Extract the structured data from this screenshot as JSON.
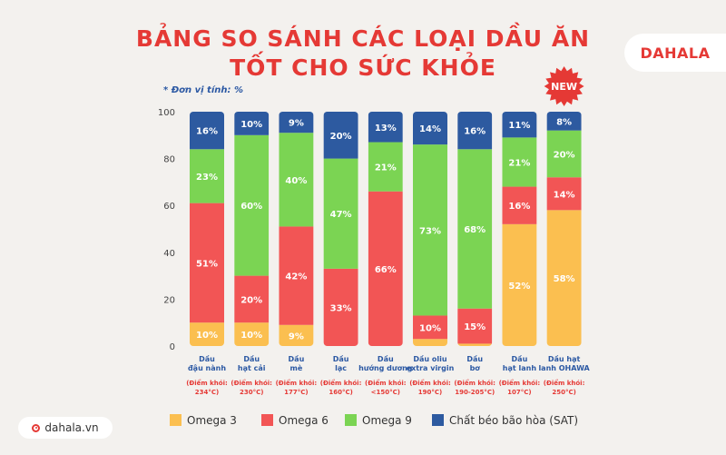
{
  "title_line1": "BẢNG SO SÁNH CÁC LOẠI DẦU ĂN",
  "title_line2": "TỐT CHO SỨC KHỎE",
  "brand": "DAHALA",
  "unit_note": "* Đơn vị tính: %",
  "website": "dahala.vn",
  "new_badge": "NEW",
  "colors": {
    "title": "#e53935",
    "omega3": "#fbbf50",
    "omega6": "#f25555",
    "omega9": "#7bd453",
    "sat": "#2d5aa0"
  },
  "chart_data": {
    "type": "bar",
    "stacked": true,
    "ylim": [
      0,
      100
    ],
    "yticks": [
      0,
      20,
      40,
      60,
      80,
      100
    ],
    "categories": [
      {
        "name1": "Dầu",
        "name2": "đậu nành",
        "smoke1": "(Điểm khói:",
        "smoke2": "234°C)"
      },
      {
        "name1": "Dầu",
        "name2": "hạt cải",
        "smoke1": "(Điểm khói:",
        "smoke2": "230°C)"
      },
      {
        "name1": "Dầu",
        "name2": "mè",
        "smoke1": "(Điểm khói:",
        "smoke2": "177°C)"
      },
      {
        "name1": "Dầu",
        "name2": "lạc",
        "smoke1": "(Điểm khói:",
        "smoke2": "160°C)"
      },
      {
        "name1": "Dầu",
        "name2": "hướng dương",
        "smoke1": "(Điểm khói:",
        "smoke2": "<150°C)"
      },
      {
        "name1": "Dầu oliu",
        "name2": "extra virgin",
        "smoke1": "(Điểm khói:",
        "smoke2": "190°C)"
      },
      {
        "name1": "Dầu",
        "name2": "bơ",
        "smoke1": "(Điểm khói:",
        "smoke2": "190-205°C)"
      },
      {
        "name1": "Dầu",
        "name2": "hạt lanh",
        "smoke1": "(Điểm khói:",
        "smoke2": "107°C)"
      },
      {
        "name1": "Dầu hạt",
        "name2": "lanh OHAWA",
        "smoke1": "(Điểm khói:",
        "smoke2": "250°C)"
      }
    ],
    "series": [
      {
        "name": "Omega 3",
        "key": "omega3",
        "values": [
          10,
          10,
          9,
          0,
          0,
          3,
          1,
          52,
          58
        ],
        "labels": [
          "10%",
          "10%",
          "9%",
          "",
          "",
          "",
          "",
          "52%",
          "58%"
        ]
      },
      {
        "name": "Omega 6",
        "key": "omega6",
        "values": [
          51,
          20,
          42,
          33,
          66,
          10,
          15,
          16,
          14
        ],
        "labels": [
          "51%",
          "20%",
          "42%",
          "33%",
          "66%",
          "10%",
          "15%",
          "16%",
          "14%"
        ]
      },
      {
        "name": "Omega 9",
        "key": "omega9",
        "values": [
          23,
          60,
          40,
          47,
          21,
          73,
          68,
          21,
          20
        ],
        "labels": [
          "23%",
          "60%",
          "40%",
          "47%",
          "21%",
          "73%",
          "68%",
          "21%",
          "20%"
        ]
      },
      {
        "name": "Chất béo bão hòa (SAT)",
        "key": "sat",
        "values": [
          16,
          10,
          9,
          20,
          13,
          14,
          16,
          11,
          8
        ],
        "labels": [
          "16%",
          "10%",
          "9%",
          "20%",
          "13%",
          "14%",
          "16%",
          "11%",
          "8%"
        ]
      }
    ],
    "new_category_index": 8
  }
}
